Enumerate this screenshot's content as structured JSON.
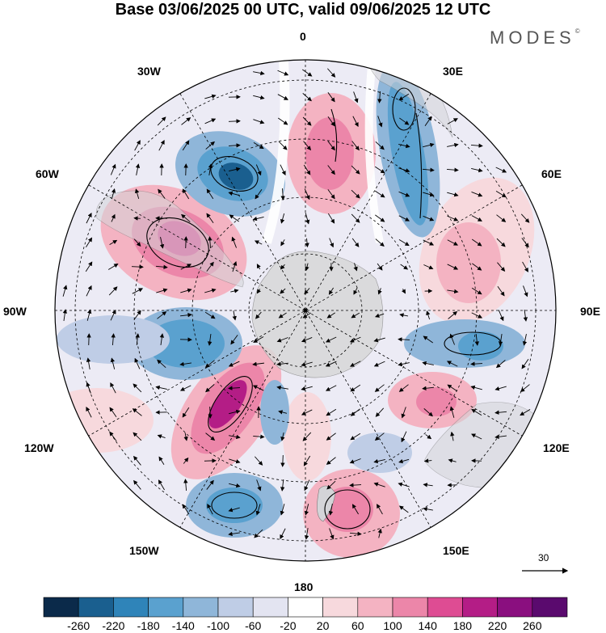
{
  "title": "Base 03/06/2025 00 UTC, valid 09/06/2025 12 UTC",
  "brand": "MODES",
  "brand_mark": "©",
  "longitude_labels": {
    "n0": "0",
    "n30e": "30E",
    "n60e": "60E",
    "n90e": "90E",
    "n120e": "120E",
    "n150e": "150E",
    "n180": "180",
    "n150w": "150W",
    "n120w": "120W",
    "n90w": "90W",
    "n60w": "60W",
    "n30w": "30W"
  },
  "wind_scale_label": "30",
  "colorbar": {
    "levels": [
      "-260",
      "-220",
      "-180",
      "-140",
      "-100",
      "-60",
      "-20",
      "20",
      "60",
      "100",
      "140",
      "180",
      "220",
      "260"
    ],
    "colors": [
      "#0b2a4a",
      "#1a5f8f",
      "#2f84b9",
      "#5aa1cf",
      "#8fb6d9",
      "#bfcde6",
      "#e3e4f1",
      "#ffffff",
      "#f7d9dd",
      "#f4b3c2",
      "#ec86a9",
      "#de4c93",
      "#b41d86",
      "#8a0f7f",
      "#5a0a6e"
    ]
  },
  "anomaly_cells": [
    {
      "sign": "negative",
      "level": "-180",
      "color": "#2f84b9"
    },
    {
      "sign": "positive",
      "level": "180",
      "color": "#de4c93"
    }
  ]
}
